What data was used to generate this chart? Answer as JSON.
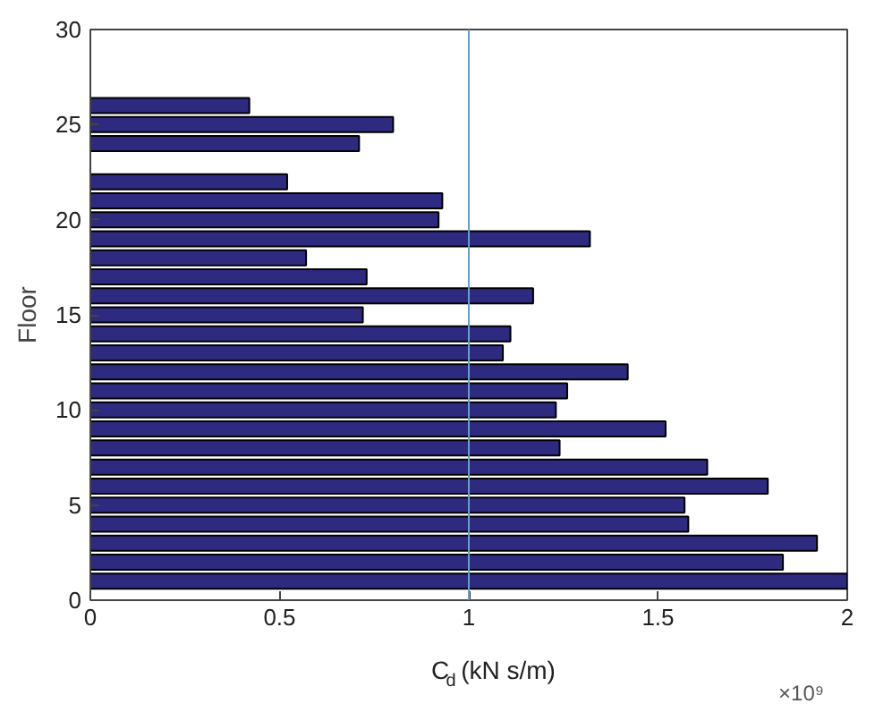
{
  "chart_data": {
    "type": "bar",
    "orientation": "horizontal",
    "xlabel": "C$_{d}$ (kN s/m)",
    "ylabel": "Floor",
    "x": [
      1,
      2,
      3,
      4,
      5,
      6,
      7,
      8,
      9,
      10,
      11,
      12,
      13,
      14,
      15,
      16,
      17,
      18,
      19,
      20,
      21,
      22,
      23,
      24,
      25,
      26
    ],
    "values": [
      2.0,
      1.83,
      1.92,
      1.58,
      1.57,
      1.79,
      1.63,
      1.24,
      1.52,
      1.23,
      1.26,
      1.42,
      1.09,
      1.11,
      0.72,
      1.17,
      0.73,
      0.57,
      1.32,
      0.92,
      0.93,
      0.52,
      null,
      0.71,
      0.8,
      0.42
    ],
    "color": "#2e2a80",
    "xlim": [
      0,
      2
    ],
    "xticks": [
      0,
      0.5,
      1,
      1.5,
      2
    ],
    "ylim": [
      0,
      30
    ],
    "yticks": [
      0,
      5,
      10,
      15,
      20,
      25,
      30
    ],
    "ref_lines": [
      {
        "axis": "x",
        "value": 1,
        "color": "#6a9ec9"
      }
    ],
    "annotations": [
      "×10⁹"
    ],
    "grid": false
  }
}
